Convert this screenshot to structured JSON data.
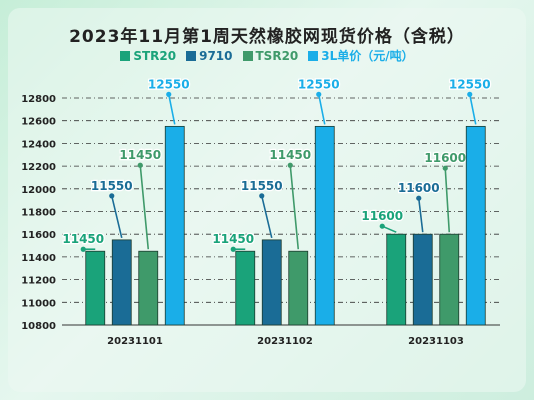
{
  "chart_data": {
    "type": "bar",
    "title": "2023年11月第1周天然橡胶网现货价格（含税）",
    "categories": [
      "20231101",
      "20231102",
      "20231103"
    ],
    "series": [
      {
        "name": "STR20",
        "color": "#1aa37a",
        "values": [
          11450,
          11450,
          11600
        ]
      },
      {
        "name": "9710",
        "color": "#1a6c96",
        "values": [
          11550,
          11550,
          11600
        ]
      },
      {
        "name": "TSR20",
        "color": "#3f9a6a",
        "values": [
          11450,
          11450,
          11600
        ]
      },
      {
        "name": "3L单价（元/吨）",
        "color": "#1aaee8",
        "values": [
          12550,
          12550,
          12550
        ]
      }
    ],
    "ylim": [
      10800,
      12800
    ],
    "yticks": [
      10800,
      11000,
      11200,
      11400,
      11600,
      11800,
      12000,
      12200,
      12400,
      12600,
      12800
    ],
    "grid": true,
    "legend_position": "top-center",
    "xlabel": "",
    "ylabel": ""
  }
}
